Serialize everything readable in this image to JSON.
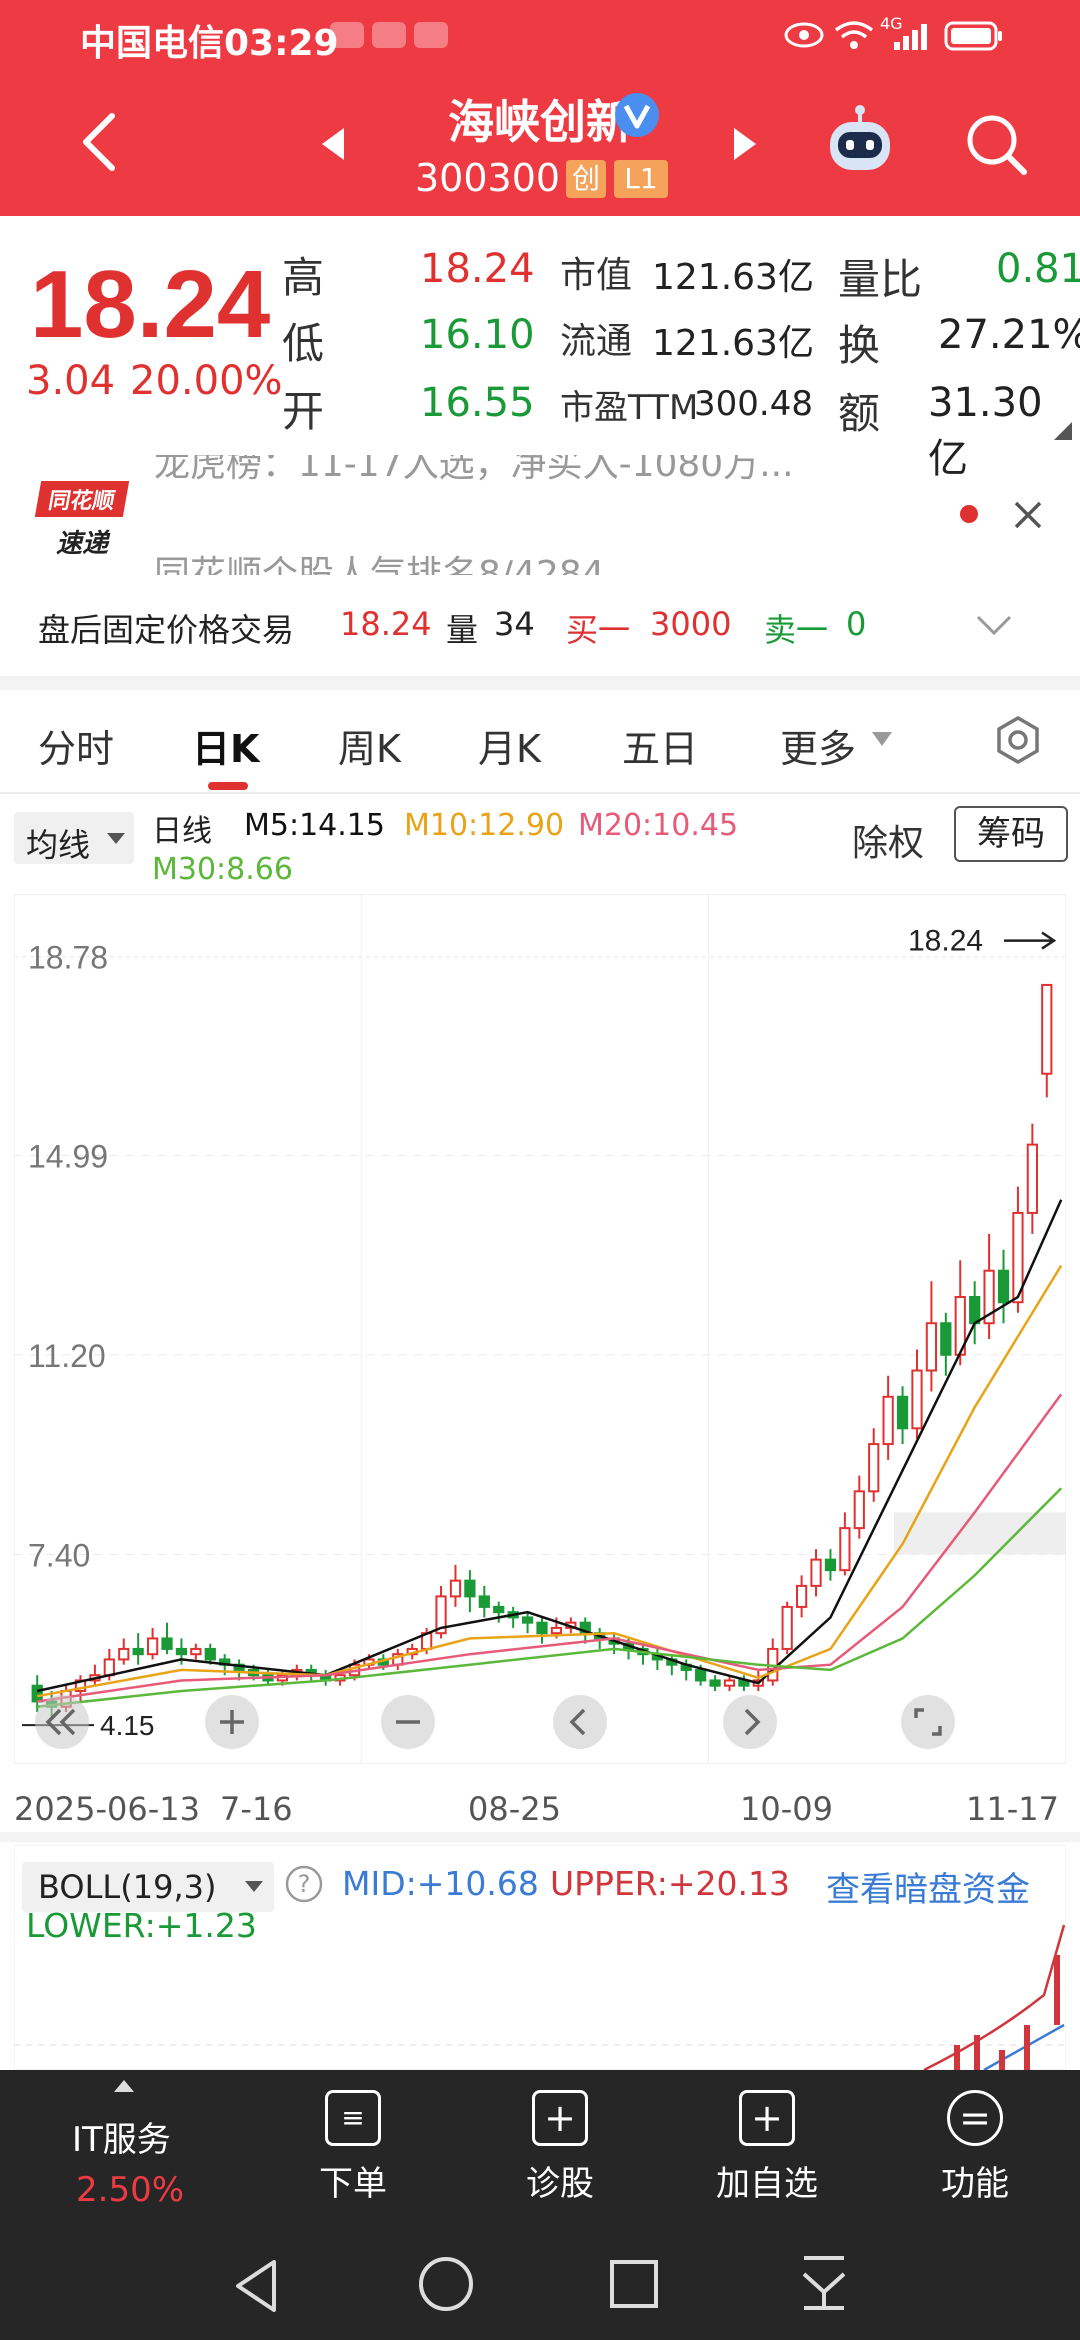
{
  "status_bar": {
    "carrier_time": "中国电信03:29",
    "network": "4G"
  },
  "header": {
    "title": "海峡创新",
    "code": "300300",
    "badge_board": "创",
    "badge_level": "L1"
  },
  "quote": {
    "price": "18.24",
    "change": "3.04",
    "change_pct": "20.00%",
    "high_label": "高",
    "high": "18.24",
    "low_label": "低",
    "low": "16.10",
    "open_label": "开",
    "open": "16.55",
    "mktcap_label": "市值",
    "mktcap": "121.63亿",
    "float_label": "流通",
    "float": "121.63亿",
    "pe_label": "市盈TTM",
    "pe": "300.48",
    "volratio_label": "量比",
    "volratio": "0.81",
    "turnover_label": "换",
    "turnover": "27.21%",
    "amount_label": "额",
    "amount": "31.30亿"
  },
  "news": {
    "logo_top": "同花顺",
    "logo_bottom": "速递",
    "line1": "龙虎榜：11-17入选，净买入-1080万...",
    "line2": "同花顺个股人气排名8/4284"
  },
  "after_hours": {
    "label": "盘后固定价格交易",
    "price": "18.24",
    "vol_label": "量",
    "vol": "34",
    "buy_label": "买一",
    "buy": "3000",
    "sell_label": "卖一",
    "sell": "0"
  },
  "tabs": [
    "分时",
    "日K",
    "周K",
    "月K",
    "五日",
    "更多"
  ],
  "ma": {
    "selector": "均线",
    "period": "日线",
    "m5": "M5:14.15",
    "m10": "M10:12.90",
    "m20": "M20:10.45",
    "m30": "M30:8.66",
    "right_text": "除权",
    "chips_btn": "筹码",
    "color_m5": "#111111",
    "color_m10": "#e8a317",
    "color_m20": "#e65a7a",
    "color_m30": "#5cb83a"
  },
  "chart_data": {
    "type": "candlestick",
    "y_ticks": [
      "18.78",
      "14.99",
      "11.20",
      "7.40"
    ],
    "ylim": [
      3.6,
      19.4
    ],
    "x_labels": [
      "2025-06-13",
      "7-16",
      "08-25",
      "10-09",
      "11-17"
    ],
    "last_price_label": "18.24",
    "min_label": "4.15",
    "candles": [
      [
        4.9,
        4.6,
        5.1,
        4.4
      ],
      [
        4.6,
        4.5,
        4.8,
        4.3
      ],
      [
        4.5,
        4.8,
        4.9,
        4.4
      ],
      [
        4.8,
        5.0,
        5.1,
        4.6
      ],
      [
        5.0,
        5.1,
        5.3,
        4.9
      ],
      [
        5.1,
        5.4,
        5.6,
        5.0
      ],
      [
        5.4,
        5.6,
        5.8,
        5.3
      ],
      [
        5.6,
        5.5,
        5.9,
        5.3
      ],
      [
        5.5,
        5.8,
        6.0,
        5.4
      ],
      [
        5.8,
        5.6,
        6.1,
        5.5
      ],
      [
        5.6,
        5.5,
        5.8,
        5.3
      ],
      [
        5.5,
        5.6,
        5.7,
        5.4
      ],
      [
        5.6,
        5.4,
        5.7,
        5.3
      ],
      [
        5.4,
        5.3,
        5.5,
        5.1
      ],
      [
        5.3,
        5.2,
        5.4,
        5.0
      ],
      [
        5.2,
        5.1,
        5.3,
        5.0
      ],
      [
        5.1,
        5.0,
        5.2,
        4.9
      ],
      [
        5.0,
        5.1,
        5.2,
        4.9
      ],
      [
        5.1,
        5.2,
        5.3,
        5.0
      ],
      [
        5.2,
        5.1,
        5.3,
        5.0
      ],
      [
        5.1,
        5.0,
        5.2,
        4.9
      ],
      [
        5.0,
        5.1,
        5.2,
        4.9
      ],
      [
        5.1,
        5.3,
        5.4,
        5.0
      ],
      [
        5.3,
        5.4,
        5.5,
        5.2
      ],
      [
        5.4,
        5.3,
        5.5,
        5.2
      ],
      [
        5.3,
        5.5,
        5.6,
        5.2
      ],
      [
        5.5,
        5.6,
        5.7,
        5.4
      ],
      [
        5.6,
        5.9,
        6.0,
        5.5
      ],
      [
        5.9,
        6.6,
        6.8,
        5.8
      ],
      [
        6.6,
        6.9,
        7.2,
        6.4
      ],
      [
        6.9,
        6.6,
        7.1,
        6.3
      ],
      [
        6.6,
        6.4,
        6.8,
        6.2
      ],
      [
        6.4,
        6.3,
        6.5,
        6.1
      ],
      [
        6.3,
        6.2,
        6.4,
        6.0
      ],
      [
        6.2,
        6.1,
        6.3,
        5.9
      ],
      [
        6.1,
        5.9,
        6.2,
        5.7
      ],
      [
        5.9,
        6.0,
        6.2,
        5.8
      ],
      [
        6.0,
        6.1,
        6.2,
        5.9
      ],
      [
        6.1,
        5.9,
        6.2,
        5.7
      ],
      [
        5.9,
        5.8,
        6.0,
        5.6
      ],
      [
        5.8,
        5.7,
        5.9,
        5.5
      ],
      [
        5.7,
        5.6,
        5.8,
        5.4
      ],
      [
        5.6,
        5.5,
        5.7,
        5.3
      ],
      [
        5.5,
        5.4,
        5.6,
        5.2
      ],
      [
        5.4,
        5.3,
        5.5,
        5.1
      ],
      [
        5.3,
        5.2,
        5.4,
        5.0
      ],
      [
        5.2,
        5.0,
        5.3,
        4.9
      ],
      [
        5.0,
        4.9,
        5.1,
        4.8
      ],
      [
        4.9,
        5.0,
        5.1,
        4.8
      ],
      [
        5.0,
        4.9,
        5.1,
        4.8
      ],
      [
        4.9,
        5.0,
        5.2,
        4.8
      ],
      [
        5.0,
        5.6,
        5.8,
        4.9
      ],
      [
        5.6,
        6.4,
        6.5,
        5.5
      ],
      [
        6.4,
        6.8,
        7.0,
        6.2
      ],
      [
        6.8,
        7.3,
        7.5,
        6.6
      ],
      [
        7.3,
        7.1,
        7.5,
        6.9
      ],
      [
        7.1,
        7.9,
        8.2,
        7.0
      ],
      [
        7.9,
        8.6,
        8.9,
        7.7
      ],
      [
        8.6,
        9.5,
        9.8,
        8.4
      ],
      [
        9.5,
        10.4,
        10.8,
        9.2
      ],
      [
        10.4,
        9.8,
        10.6,
        9.5
      ],
      [
        9.8,
        10.9,
        11.3,
        9.6
      ],
      [
        10.9,
        11.8,
        12.6,
        10.5
      ],
      [
        11.8,
        11.2,
        12.0,
        10.8
      ],
      [
        11.2,
        12.3,
        13.0,
        11.0
      ],
      [
        12.3,
        11.8,
        12.6,
        11.4
      ],
      [
        11.8,
        12.8,
        13.5,
        11.5
      ],
      [
        12.8,
        12.2,
        13.2,
        11.8
      ],
      [
        12.2,
        13.9,
        14.4,
        12.0
      ],
      [
        13.9,
        15.2,
        15.6,
        13.5
      ],
      [
        16.55,
        18.24,
        18.24,
        16.1
      ]
    ],
    "ma_series": [
      {
        "name": "M5",
        "color": "#111111",
        "points": [
          [
            0,
            4.8
          ],
          [
            10,
            5.4
          ],
          [
            20,
            5.1
          ],
          [
            28,
            6.0
          ],
          [
            34,
            6.3
          ],
          [
            45,
            5.3
          ],
          [
            50,
            4.95
          ],
          [
            55,
            6.2
          ],
          [
            60,
            9.0
          ],
          [
            65,
            11.8
          ],
          [
            68,
            12.3
          ],
          [
            71,
            14.15
          ]
        ]
      },
      {
        "name": "M10",
        "color": "#e8a317",
        "points": [
          [
            0,
            4.7
          ],
          [
            10,
            5.2
          ],
          [
            20,
            5.1
          ],
          [
            30,
            5.8
          ],
          [
            40,
            5.9
          ],
          [
            50,
            5.05
          ],
          [
            55,
            5.6
          ],
          [
            60,
            7.6
          ],
          [
            65,
            10.2
          ],
          [
            71,
            12.9
          ]
        ]
      },
      {
        "name": "M20",
        "color": "#e65a7a",
        "points": [
          [
            0,
            4.6
          ],
          [
            10,
            5.0
          ],
          [
            20,
            5.1
          ],
          [
            30,
            5.5
          ],
          [
            40,
            5.8
          ],
          [
            50,
            5.2
          ],
          [
            55,
            5.3
          ],
          [
            60,
            6.4
          ],
          [
            65,
            8.2
          ],
          [
            71,
            10.45
          ]
        ]
      },
      {
        "name": "M30",
        "color": "#5cb83a",
        "points": [
          [
            0,
            4.5
          ],
          [
            10,
            4.8
          ],
          [
            20,
            5.0
          ],
          [
            30,
            5.3
          ],
          [
            40,
            5.6
          ],
          [
            50,
            5.3
          ],
          [
            55,
            5.2
          ],
          [
            60,
            5.8
          ],
          [
            65,
            7.0
          ],
          [
            71,
            8.66
          ]
        ]
      }
    ]
  },
  "boll": {
    "selector": "BOLL(19,3)",
    "mid": "MID:+10.68",
    "upper": "UPPER:+20.13",
    "lower": "LOWER:+1.23",
    "link": "查看暗盘资金"
  },
  "bottom": {
    "sector": "IT服务",
    "sector_change": "2.50%",
    "order": "下单",
    "diagnose": "诊股",
    "add_watch": "加自选",
    "functions": "功能"
  }
}
